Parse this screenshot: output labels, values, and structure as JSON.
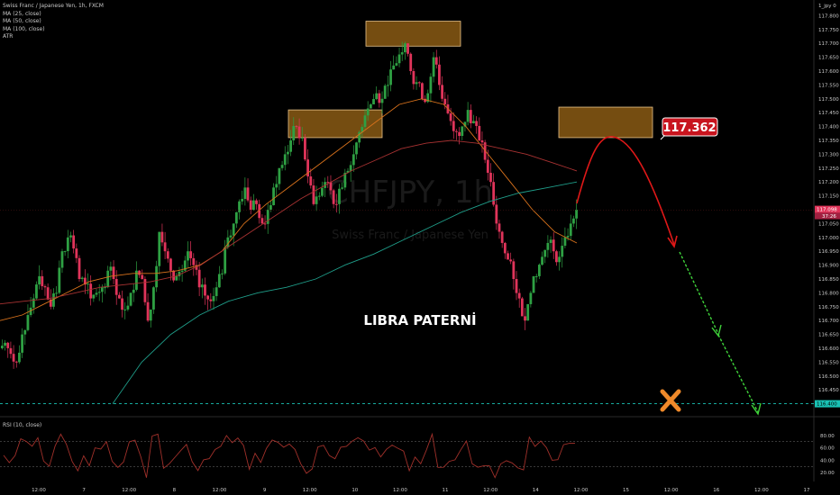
{
  "legend": {
    "title": "Swiss Franc / Japanese Yen, 1h, FXCM",
    "ma25": "MA (25, close)",
    "ma50": "MA (50, close)",
    "ma100": "MA (100, close)",
    "atr": "ATR"
  },
  "rsi_legend": "RSI (10, close)",
  "watermark": {
    "symbol": "CHFJPY, 1h",
    "name": "Swiss Franc / Japanese Yen"
  },
  "pattern_label": "LIBRA PATERNİ",
  "target_label": "117.362",
  "price_axis_header": "1_jpy 0",
  "current_price": "117.098",
  "countdown": "37:26",
  "level_label": "116.400",
  "colors": {
    "background": "#000000",
    "up": "#2ea043",
    "down": "#e0345a",
    "ma25": "#d9721c",
    "ma50": "#a83232",
    "ma100": "#1f9e8a",
    "zone": "#8a5a14",
    "arrow_red": "#e01818",
    "arrow_green": "#3fd23a",
    "cross": "#f08a2a",
    "level_line": "#19c2b4",
    "rsi_line": "#a0302a"
  },
  "chart_data": {
    "type": "candlestick",
    "y_axis": {
      "min": 116.35,
      "max": 117.85,
      "ticks": [
        117.8,
        117.75,
        117.7,
        117.65,
        117.6,
        117.55,
        117.5,
        117.45,
        117.4,
        117.35,
        117.3,
        117.25,
        117.2,
        117.15,
        117.1,
        117.05,
        117.0,
        116.95,
        116.9,
        116.85,
        116.8,
        116.75,
        116.7,
        116.65,
        116.6,
        116.55,
        116.5,
        116.45
      ]
    },
    "x_ticks": [
      "12:00",
      "7",
      "12:00",
      "8",
      "12:00",
      "9",
      "12:00",
      "10",
      "12:00",
      "11",
      "12:00",
      "14",
      "12:00",
      "15",
      "12:00",
      "16",
      "12:00",
      "17"
    ],
    "close_path": [
      116.62,
      116.58,
      116.55,
      116.65,
      116.72,
      116.78,
      116.86,
      116.82,
      116.75,
      116.8,
      116.95,
      117.0,
      116.96,
      116.85,
      116.83,
      116.78,
      116.8,
      116.82,
      116.88,
      116.85,
      116.78,
      116.74,
      116.8,
      116.88,
      116.85,
      116.7,
      116.82,
      117.02,
      116.95,
      116.88,
      116.86,
      116.88,
      116.95,
      116.9,
      116.82,
      116.79,
      116.77,
      116.82,
      116.87,
      117.0,
      117.05,
      117.13,
      117.18,
      117.1,
      117.12,
      117.05,
      117.1,
      117.18,
      117.25,
      117.3,
      117.35,
      117.4,
      117.36,
      117.22,
      117.12,
      117.15,
      117.2,
      117.17,
      117.12,
      117.18,
      117.24,
      117.3,
      117.38,
      117.44,
      117.48,
      117.52,
      117.5,
      117.55,
      117.62,
      117.66,
      117.7,
      117.6,
      117.56,
      117.5,
      117.52,
      117.65,
      117.55,
      117.48,
      117.42,
      117.38,
      117.4,
      117.46,
      117.42,
      117.35,
      117.28,
      117.2,
      117.05,
      116.98,
      116.92,
      116.85,
      116.78,
      116.7,
      116.8,
      116.86,
      116.93,
      116.98,
      116.95,
      116.93,
      117.0,
      117.05,
      117.1
    ],
    "ma25": [
      116.7,
      116.72,
      116.76,
      116.8,
      116.84,
      116.86,
      116.87,
      116.87,
      116.88,
      116.9,
      116.95,
      117.05,
      117.12,
      117.18,
      117.24,
      117.3,
      117.36,
      117.42,
      117.48,
      117.5,
      117.48,
      117.4,
      117.3,
      117.2,
      117.1,
      117.02,
      116.98
    ],
    "ma50": [
      116.76,
      116.77,
      116.78,
      116.8,
      116.82,
      116.83,
      116.84,
      116.86,
      116.9,
      116.96,
      117.02,
      117.08,
      117.14,
      117.19,
      117.24,
      117.28,
      117.32,
      117.34,
      117.35,
      117.34,
      117.32,
      117.3,
      117.27,
      117.24
    ],
    "ma100": [
      116.4,
      116.55,
      116.65,
      116.72,
      116.77,
      116.8,
      116.82,
      116.85,
      116.9,
      116.94,
      116.99,
      117.04,
      117.09,
      117.13,
      117.16,
      117.18,
      117.2
    ],
    "zones": [
      {
        "y_low": 117.36,
        "y_high": 117.46
      },
      {
        "y_low": 117.69,
        "y_high": 117.78
      },
      {
        "y_low": 117.36,
        "y_high": 117.47
      }
    ],
    "target_level": 117.362,
    "support_level": 116.4,
    "current_price": 117.098,
    "rsi": {
      "ticks": [
        80.0,
        60.0,
        40.0,
        20.0
      ],
      "overbought": 70,
      "oversold": 30
    }
  }
}
